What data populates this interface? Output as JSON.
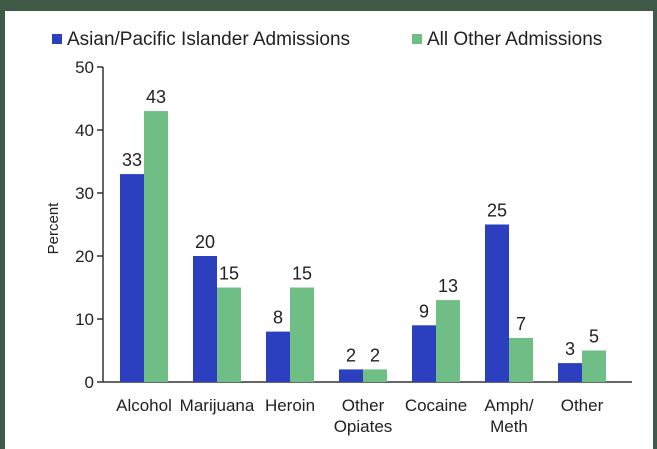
{
  "chart_data": {
    "type": "bar",
    "categories": [
      [
        "Alcohol"
      ],
      [
        "Marijuana"
      ],
      [
        "Heroin"
      ],
      [
        "Other",
        "Opiates"
      ],
      [
        "Cocaine"
      ],
      [
        "Amph/",
        "Meth"
      ],
      [
        "Other"
      ]
    ],
    "series": [
      {
        "name": "Asian/Pacific Islander Admissions",
        "color": "#2b3fbf",
        "values": [
          33,
          20,
          8,
          2,
          9,
          25,
          3
        ]
      },
      {
        "name": "All Other Admissions",
        "color": "#6fbe86",
        "values": [
          43,
          15,
          15,
          2,
          13,
          7,
          5
        ]
      }
    ],
    "title": "",
    "xlabel": "",
    "ylabel": "Percent",
    "ylim": [
      0,
      50
    ],
    "yticks": [
      0,
      10,
      20,
      30,
      40,
      50
    ],
    "legend_position": "top"
  }
}
